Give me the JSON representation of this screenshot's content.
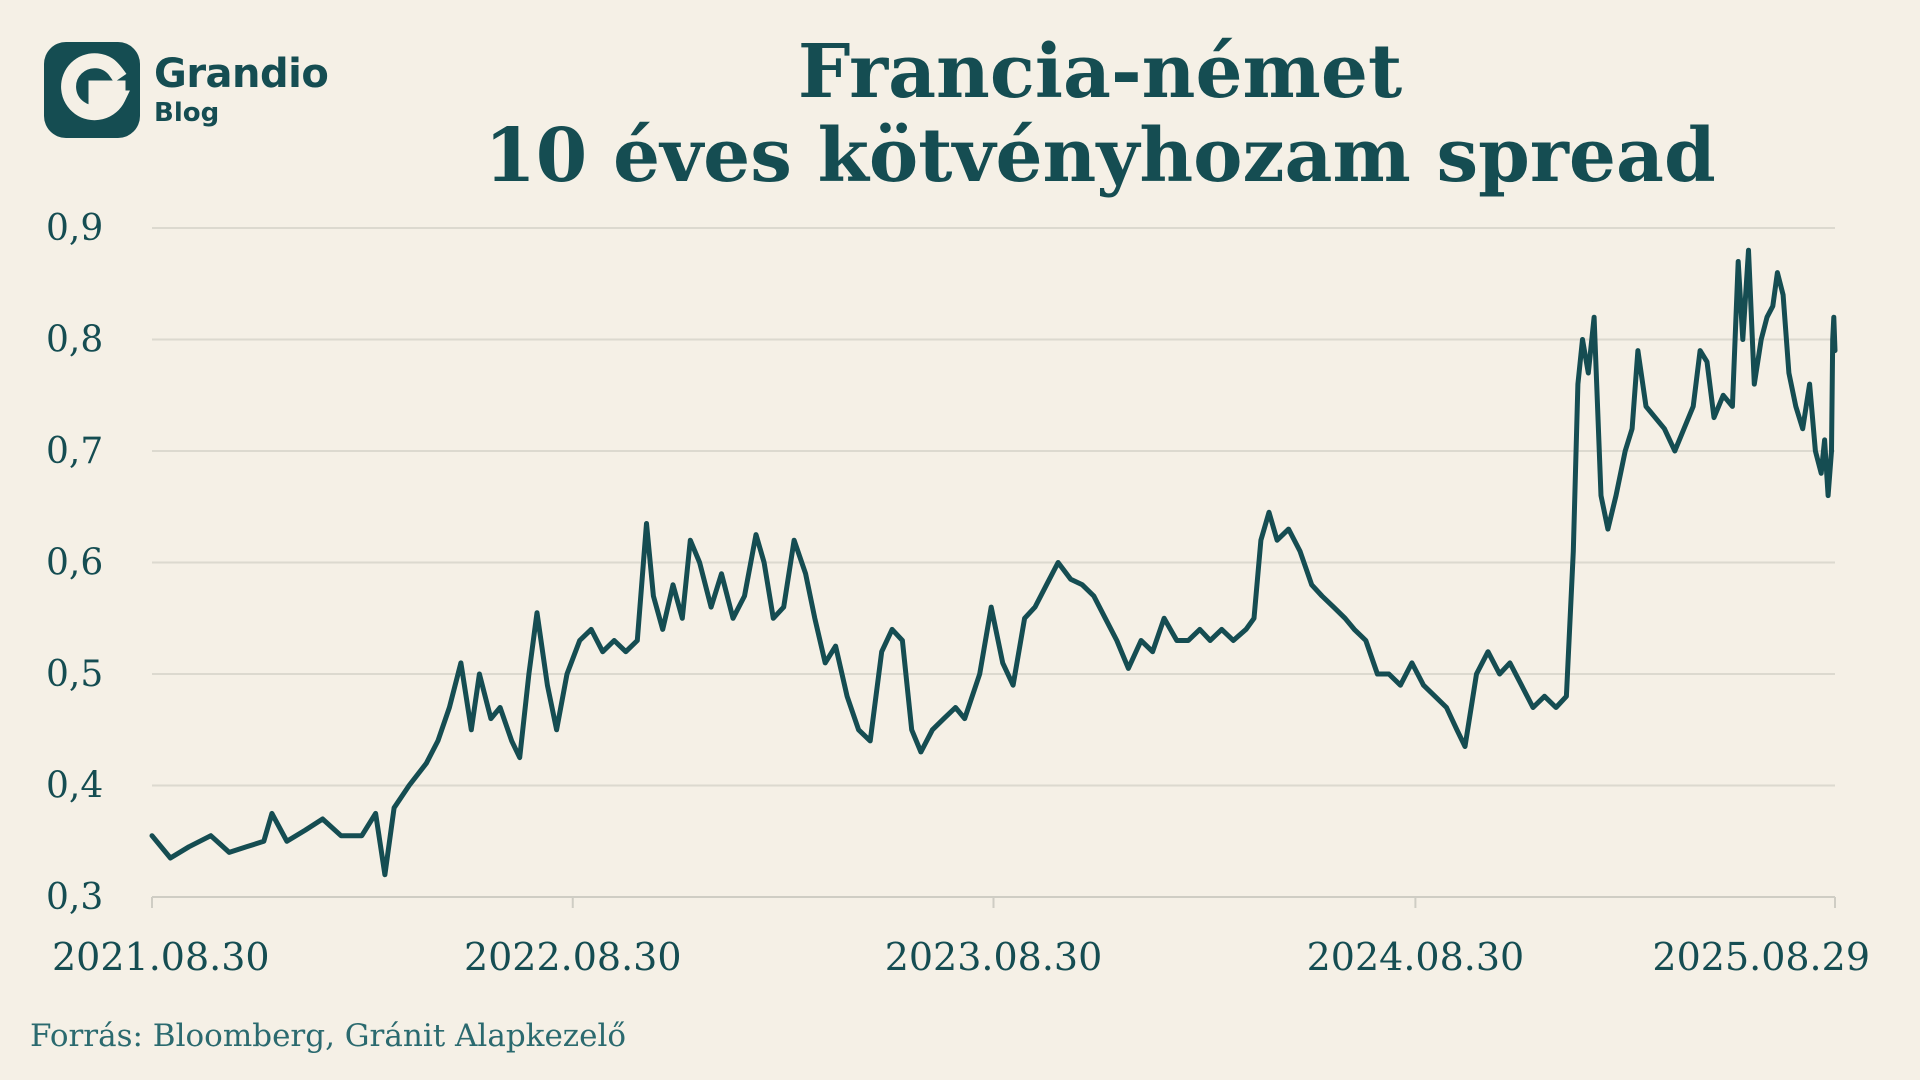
{
  "brand": {
    "name": "Grandio",
    "sub": "Blog"
  },
  "source": "Forrás: Bloomberg, Gránit Alapkezelő",
  "chart_data": {
    "type": "line",
    "title": [
      "Francia-német",
      "10 éves kötvényhozam spread"
    ],
    "xlabel": "",
    "ylabel": "",
    "ylim": [
      0.3,
      0.9
    ],
    "yticks": [
      0.3,
      0.4,
      0.5,
      0.6,
      0.7,
      0.8,
      0.9
    ],
    "ytick_labels": [
      "0,3",
      "0,4",
      "0,5",
      "0,6",
      "0,7",
      "0,8",
      "0,9"
    ],
    "xlim": [
      "2021.08.30",
      "2025.08.29"
    ],
    "xtick_labels": [
      "2021.08.30",
      "2022.08.30",
      "2023.08.30",
      "2024.08.30",
      "2025.08.29"
    ],
    "grid": "horizontal",
    "line_color": "#154d52",
    "series": [
      {
        "points": [
          [
            "2021.08.30",
            0.355
          ],
          [
            "2021.09.15",
            0.335
          ],
          [
            "2021.10.01",
            0.345
          ],
          [
            "2021.10.20",
            0.355
          ],
          [
            "2021.11.05",
            0.34
          ],
          [
            "2021.11.20",
            0.345
          ],
          [
            "2021.12.05",
            0.35
          ],
          [
            "2021.12.12",
            0.375
          ],
          [
            "2021.12.25",
            0.35
          ],
          [
            "2022.01.10",
            0.36
          ],
          [
            "2022.01.25",
            0.37
          ],
          [
            "2022.02.10",
            0.355
          ],
          [
            "2022.02.28",
            0.355
          ],
          [
            "2022.03.12",
            0.375
          ],
          [
            "2022.03.20",
            0.32
          ],
          [
            "2022.03.28",
            0.38
          ],
          [
            "2022.04.10",
            0.4
          ],
          [
            "2022.04.25",
            0.42
          ],
          [
            "2022.05.05",
            0.44
          ],
          [
            "2022.05.15",
            0.47
          ],
          [
            "2022.05.25",
            0.51
          ],
          [
            "2022.06.03",
            0.45
          ],
          [
            "2022.06.10",
            0.5
          ],
          [
            "2022.06.20",
            0.46
          ],
          [
            "2022.06.28",
            0.47
          ],
          [
            "2022.07.08",
            0.44
          ],
          [
            "2022.07.15",
            0.425
          ],
          [
            "2022.07.23",
            0.5
          ],
          [
            "2022.07.30",
            0.555
          ],
          [
            "2022.08.08",
            0.49
          ],
          [
            "2022.08.16",
            0.45
          ],
          [
            "2022.08.25",
            0.5
          ],
          [
            "2022.09.05",
            0.53
          ],
          [
            "2022.09.15",
            0.54
          ],
          [
            "2022.09.25",
            0.52
          ],
          [
            "2022.10.05",
            0.53
          ],
          [
            "2022.10.15",
            0.52
          ],
          [
            "2022.10.25",
            0.53
          ],
          [
            "2022.11.02",
            0.635
          ],
          [
            "2022.11.08",
            0.57
          ],
          [
            "2022.11.16",
            0.54
          ],
          [
            "2022.11.25",
            0.58
          ],
          [
            "2022.12.03",
            0.55
          ],
          [
            "2022.12.10",
            0.62
          ],
          [
            "2022.12.18",
            0.6
          ],
          [
            "2022.12.28",
            0.56
          ],
          [
            "2023.01.06",
            0.59
          ],
          [
            "2023.01.16",
            0.55
          ],
          [
            "2023.01.26",
            0.57
          ],
          [
            "2023.02.05",
            0.625
          ],
          [
            "2023.02.12",
            0.6
          ],
          [
            "2023.02.20",
            0.55
          ],
          [
            "2023.03.01",
            0.56
          ],
          [
            "2023.03.10",
            0.62
          ],
          [
            "2023.03.20",
            0.59
          ],
          [
            "2023.03.28",
            0.55
          ],
          [
            "2023.04.06",
            0.51
          ],
          [
            "2023.04.15",
            0.525
          ],
          [
            "2023.04.25",
            0.48
          ],
          [
            "2023.05.05",
            0.45
          ],
          [
            "2023.05.15",
            0.44
          ],
          [
            "2023.05.25",
            0.52
          ],
          [
            "2023.06.03",
            0.54
          ],
          [
            "2023.06.12",
            0.53
          ],
          [
            "2023.06.20",
            0.45
          ],
          [
            "2023.06.28",
            0.43
          ],
          [
            "2023.07.08",
            0.45
          ],
          [
            "2023.07.18",
            0.46
          ],
          [
            "2023.07.28",
            0.47
          ],
          [
            "2023.08.05",
            0.46
          ],
          [
            "2023.08.18",
            0.5
          ],
          [
            "2023.08.28",
            0.56
          ],
          [
            "2023.09.07",
            0.51
          ],
          [
            "2023.09.16",
            0.49
          ],
          [
            "2023.09.26",
            0.55
          ],
          [
            "2023.10.05",
            0.56
          ],
          [
            "2023.10.15",
            0.58
          ],
          [
            "2023.10.25",
            0.6
          ],
          [
            "2023.11.05",
            0.585
          ],
          [
            "2023.11.15",
            0.58
          ],
          [
            "2023.11.25",
            0.57
          ],
          [
            "2023.12.05",
            0.55
          ],
          [
            "2023.12.15",
            0.53
          ],
          [
            "2023.12.25",
            0.505
          ],
          [
            "2024.01.05",
            0.53
          ],
          [
            "2024.01.15",
            0.52
          ],
          [
            "2024.01.25",
            0.55
          ],
          [
            "2024.02.05",
            0.53
          ],
          [
            "2024.02.15",
            0.53
          ],
          [
            "2024.02.25",
            0.54
          ],
          [
            "2024.03.05",
            0.53
          ],
          [
            "2024.03.15",
            0.54
          ],
          [
            "2024.03.25",
            0.53
          ],
          [
            "2024.04.05",
            0.54
          ],
          [
            "2024.04.12",
            0.55
          ],
          [
            "2024.04.18",
            0.62
          ],
          [
            "2024.04.25",
            0.645
          ],
          [
            "2024.05.02",
            0.62
          ],
          [
            "2024.05.12",
            0.63
          ],
          [
            "2024.05.22",
            0.61
          ],
          [
            "2024.06.01",
            0.58
          ],
          [
            "2024.06.10",
            0.57
          ],
          [
            "2024.06.20",
            0.56
          ],
          [
            "2024.06.30",
            0.55
          ],
          [
            "2024.07.08",
            0.54
          ],
          [
            "2024.07.18",
            0.53
          ],
          [
            "2024.07.28",
            0.5
          ],
          [
            "2024.08.07",
            0.5
          ],
          [
            "2024.08.17",
            0.49
          ],
          [
            "2024.08.27",
            0.51
          ],
          [
            "2024.09.06",
            0.49
          ],
          [
            "2024.09.16",
            0.48
          ],
          [
            "2024.09.26",
            0.47
          ],
          [
            "2024.10.05",
            0.45
          ],
          [
            "2024.10.12",
            0.435
          ],
          [
            "2024.10.22",
            0.5
          ],
          [
            "2024.11.01",
            0.52
          ],
          [
            "2024.11.11",
            0.5
          ],
          [
            "2024.11.20",
            0.51
          ],
          [
            "2024.11.30",
            0.49
          ],
          [
            "2024.12.10",
            0.47
          ],
          [
            "2024.12.20",
            0.48
          ],
          [
            "2024.12.30",
            0.47
          ],
          [
            "2025.01.08",
            0.48
          ],
          [
            "2025.01.14",
            0.61
          ],
          [
            "2025.01.18",
            0.76
          ],
          [
            "2025.01.22",
            0.8
          ],
          [
            "2025.01.27",
            0.77
          ],
          [
            "2025.02.01",
            0.82
          ],
          [
            "2025.02.07",
            0.66
          ],
          [
            "2025.02.13",
            0.63
          ],
          [
            "2025.02.20",
            0.66
          ],
          [
            "2025.02.28",
            0.7
          ],
          [
            "2025.03.06",
            0.72
          ],
          [
            "2025.03.11",
            0.79
          ],
          [
            "2025.03.18",
            0.74
          ],
          [
            "2025.03.26",
            0.73
          ],
          [
            "2025.04.03",
            0.72
          ],
          [
            "2025.04.12",
            0.7
          ],
          [
            "2025.04.20",
            0.72
          ],
          [
            "2025.04.28",
            0.74
          ],
          [
            "2025.05.04",
            0.79
          ],
          [
            "2025.05.10",
            0.78
          ],
          [
            "2025.05.16",
            0.73
          ],
          [
            "2025.05.24",
            0.75
          ],
          [
            "2025.06.01",
            0.74
          ],
          [
            "2025.06.06",
            0.87
          ],
          [
            "2025.06.10",
            0.8
          ],
          [
            "2025.06.15",
            0.88
          ],
          [
            "2025.06.20",
            0.76
          ],
          [
            "2025.06.26",
            0.8
          ],
          [
            "2025.07.01",
            0.82
          ],
          [
            "2025.07.06",
            0.83
          ],
          [
            "2025.07.10",
            0.86
          ],
          [
            "2025.07.15",
            0.84
          ],
          [
            "2025.07.20",
            0.77
          ],
          [
            "2025.07.26",
            0.74
          ],
          [
            "2025.08.01",
            0.72
          ],
          [
            "2025.08.07",
            0.76
          ],
          [
            "2025.08.12",
            0.7
          ],
          [
            "2025.08.17",
            0.68
          ],
          [
            "2025.08.20",
            0.71
          ],
          [
            "2025.08.23",
            0.66
          ],
          [
            "2025.08.26",
            0.7
          ],
          [
            "2025.08.27",
            0.8
          ],
          [
            "2025.08.28",
            0.82
          ],
          [
            "2025.08.29",
            0.79
          ]
        ]
      }
    ]
  }
}
